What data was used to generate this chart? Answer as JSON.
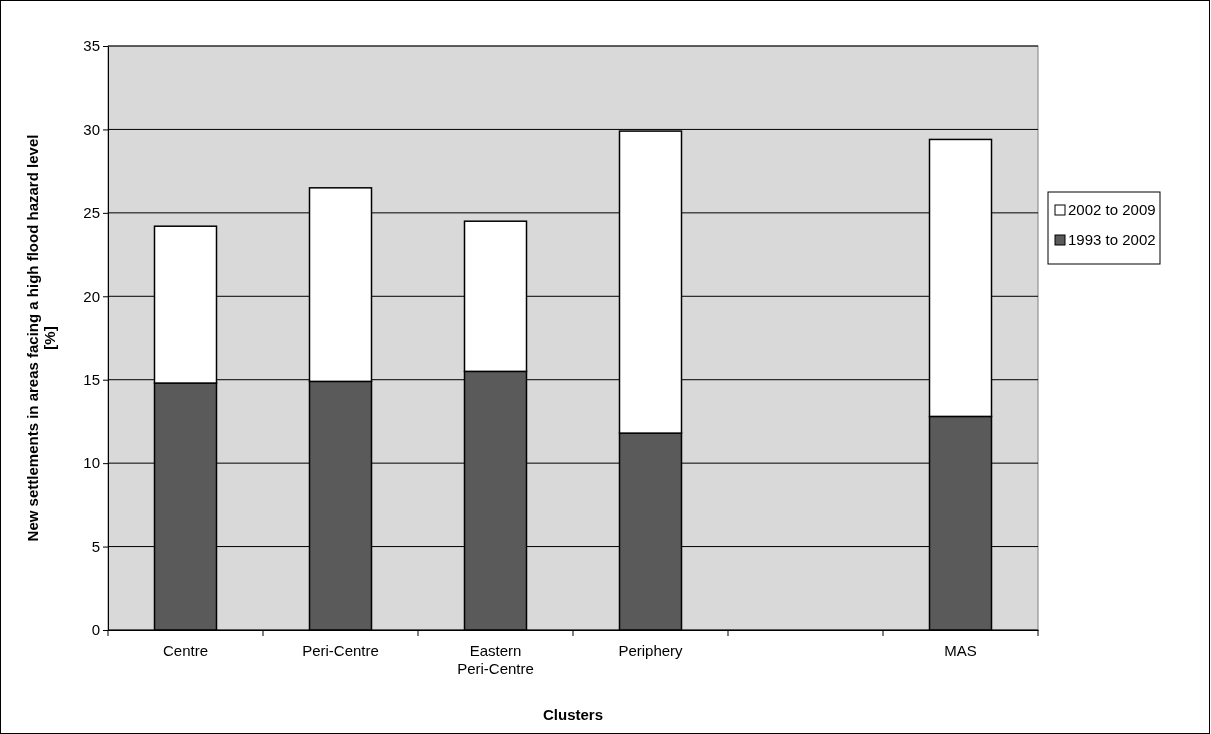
{
  "chart_data": {
    "type": "bar",
    "stacked": true,
    "xlabel": "Clusters",
    "ylabel": "New settlements in areas facing a high flood hazard level [%]",
    "categories": [
      "Centre",
      "Peri-Centre",
      "Eastern Peri-Centre",
      "Periphery",
      null,
      "MAS"
    ],
    "series": [
      {
        "name": "1993 to 2002",
        "color": "#5a5a5a",
        "values": [
          14.8,
          14.9,
          15.5,
          11.8,
          null,
          12.8
        ]
      },
      {
        "name": "2002 to 2009",
        "color": "#ffffff",
        "values": [
          9.4,
          11.6,
          9.0,
          18.1,
          null,
          16.6
        ]
      }
    ],
    "ylim": [
      0,
      35
    ],
    "yticks": [
      0,
      5,
      10,
      15,
      20,
      25,
      30,
      35
    ],
    "grid": "y",
    "legend": "right"
  }
}
